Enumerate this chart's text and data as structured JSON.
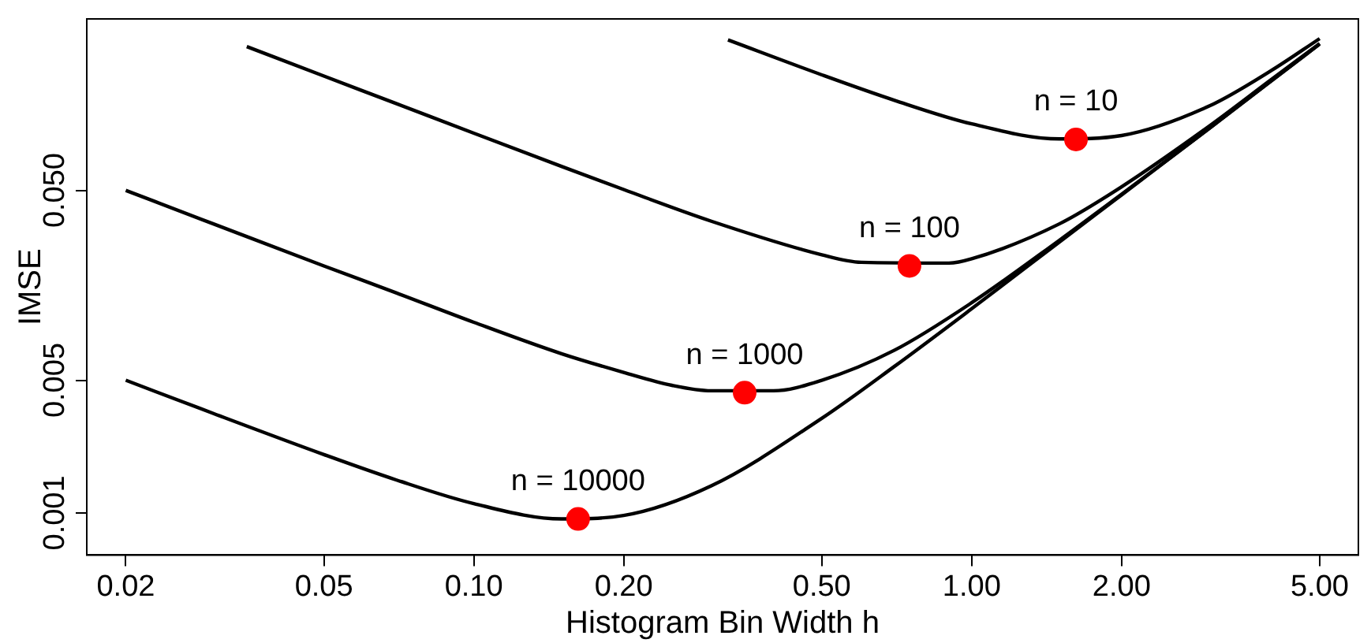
{
  "chart_data": {
    "type": "line",
    "xlabel": "Histogram Bin Width h",
    "ylabel": "IMSE",
    "log": "xy",
    "xlim": [
      0.0167,
      5.98
    ],
    "ylim": [
      0.0006,
      0.4
    ],
    "xticks": [
      0.02,
      0.05,
      {
        "value": 0.1,
        "label": "0.10"
      },
      {
        "value": 0.2,
        "label": "0.20"
      },
      {
        "value": 0.5,
        "label": "0.50"
      },
      {
        "value": 1,
        "label": "1.00"
      },
      {
        "value": 2,
        "label": "2.00"
      },
      {
        "value": 5,
        "label": "5.00"
      }
    ],
    "yticks": [
      0.001,
      0.005,
      {
        "value": 0.05,
        "label": "0.050"
      }
    ],
    "grid": false,
    "legend": false,
    "marker": "none",
    "line_style": "solid",
    "series": [
      {
        "color": "#000000",
        "x": [
          0.324,
          0.5,
          0.7,
          1,
          1.5,
          2,
          3,
          4,
          5
        ],
        "values": [
          0.31,
          0.203,
          0.149,
          0.112,
          0.0933,
          0.0972,
          0.139,
          0.214,
          0.315
        ]
      },
      {
        "color": "#000000",
        "x": [
          0.035,
          0.05,
          0.07,
          0.1,
          0.15,
          0.2,
          0.3,
          0.5,
          0.6,
          0.9,
          1,
          1.5,
          2,
          3,
          4,
          5
        ],
        "values": [
          0.286,
          0.2,
          0.143,
          0.1,
          0.0669,
          0.0505,
          0.0344,
          0.0229,
          0.0209,
          0.0207,
          0.0218,
          0.0333,
          0.0522,
          0.109,
          0.192,
          0.297
        ]
      },
      {
        "color": "#000000",
        "x": [
          0.02,
          0.03,
          0.05,
          0.07,
          0.1,
          0.15,
          0.2,
          0.25,
          0.3,
          0.4,
          0.5,
          0.7,
          1,
          1.5,
          2,
          3,
          4,
          5
        ],
        "values": [
          0.05,
          0.0333,
          0.02,
          0.0144,
          0.0101,
          0.0069,
          0.0055,
          0.0047,
          0.0044,
          0.0044,
          0.005,
          0.0072,
          0.0128,
          0.0273,
          0.0477,
          0.106,
          0.189,
          0.295
        ]
      },
      {
        "color": "#000000",
        "x": [
          0.02,
          0.03,
          0.05,
          0.07,
          0.1,
          0.15,
          0.2,
          0.3,
          0.5,
          0.7,
          1,
          1.5,
          2,
          3,
          4,
          5
        ],
        "values": [
          0.005,
          0.00334,
          0.00203,
          0.00149,
          0.00112,
          0.00093,
          0.00097,
          0.00139,
          0.00315,
          0.00592,
          0.0119,
          0.0267,
          0.0473,
          0.106,
          0.189,
          0.295
        ]
      },
      {
        "type": "scatter",
        "marker": "circle",
        "color": "#ff0000",
        "x": [
          1.62,
          0.75,
          0.35,
          0.162
        ],
        "values": [
          0.0927,
          0.02,
          0.0043,
          0.00093
        ]
      }
    ],
    "annotations": [
      {
        "text": "n = 10",
        "x": 1.62,
        "y": 0.0927
      },
      {
        "text": "n = 100",
        "x": 0.75,
        "y": 0.02
      },
      {
        "text": "n = 1000",
        "x": 0.35,
        "y": 0.0043
      },
      {
        "text": "n = 10000",
        "x": 0.162,
        "y": 0.00093
      }
    ]
  }
}
